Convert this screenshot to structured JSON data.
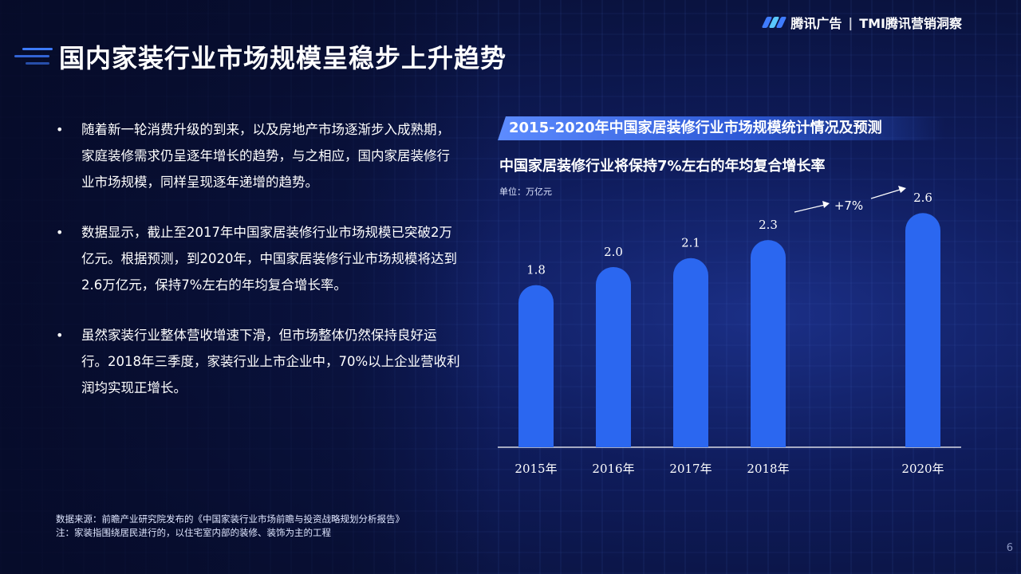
{
  "header": {
    "logo_text": "腾讯广告",
    "separator": "|",
    "logo_text2": "TMI腾讯营销洞察",
    "title": "国内家装行业市场规模呈稳步上升趋势"
  },
  "bullets": [
    {
      "marker": "•",
      "text": "随着新一轮消费升级的到来，以及房地产市场逐渐步入成熟期，家庭装修需求仍呈逐年增长的趋势，与之相应，国内家居装修行业市场规模，同样呈现逐年递增的趋势。"
    },
    {
      "marker": "•",
      "text": "数据显示，截止至2017年中国家居装修行业市场规模已突破2万亿元。根据预测，到2020年，中国家居装修行业市场规模将达到2.6万亿元，保持7%左右的年均复合增长率。"
    },
    {
      "marker": "•",
      "text": "虽然家装行业整体营收增速下滑，但市场整体仍然保持良好运行。2018年三季度，家装行业上市企业中，70%以上企业营收利润均实现正增长。"
    }
  ],
  "chart_data": {
    "type": "bar",
    "title": "2015-2020年中国家居装修行业市场规模统计情况及预测",
    "subtitle": "中国家居装修行业将保持7%左右的年均复合增长率",
    "unit_label": "单位：万亿元",
    "categories": [
      "2015年",
      "2016年",
      "2017年",
      "2018年",
      "2020年"
    ],
    "values": [
      1.8,
      2.0,
      2.1,
      2.3,
      2.6
    ],
    "value_labels": [
      "1.8",
      "2.0",
      "2.1",
      "2.3",
      "2.6"
    ],
    "annotation": "+7%",
    "bar_color": "#2b67f0"
  },
  "footer": {
    "source_line1": "数据来源：前瞻产业研究院发布的《中国家装行业市场前瞻与投资战略规划分析报告》",
    "source_line2": "注：家装指围绕居民进行的，以住宅室内部的装修、装饰为主的工程",
    "page_number": "6"
  }
}
